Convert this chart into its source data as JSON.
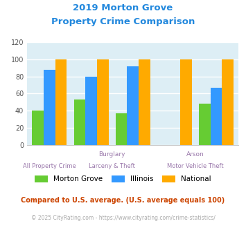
{
  "title_line1": "2019 Morton Grove",
  "title_line2": "Property Crime Comparison",
  "cat_labels_top": [
    "",
    "Burglary",
    "",
    "Arson",
    ""
  ],
  "cat_labels_bottom": [
    "All Property Crime",
    "Larceny & Theft",
    "Motor Vehicle Theft"
  ],
  "morton_grove": [
    40,
    53,
    37,
    0,
    48
  ],
  "illinois": [
    88,
    80,
    92,
    0,
    67
  ],
  "national": [
    100,
    100,
    100,
    100,
    100
  ],
  "bar_colors": [
    "#66cc33",
    "#3399ff",
    "#ffaa00"
  ],
  "ylim": [
    0,
    120
  ],
  "yticks": [
    0,
    20,
    40,
    60,
    80,
    100,
    120
  ],
  "bg_color": "#ddeef5",
  "legend_labels": [
    "Morton Grove",
    "Illinois",
    "National"
  ],
  "footnote1": "Compared to U.S. average. (U.S. average equals 100)",
  "footnote2": "© 2025 CityRating.com - https://www.cityrating.com/crime-statistics/",
  "title_color": "#2288dd",
  "footnote1_color": "#cc4400",
  "footnote2_color": "#aaaaaa",
  "label_color": "#9977aa"
}
